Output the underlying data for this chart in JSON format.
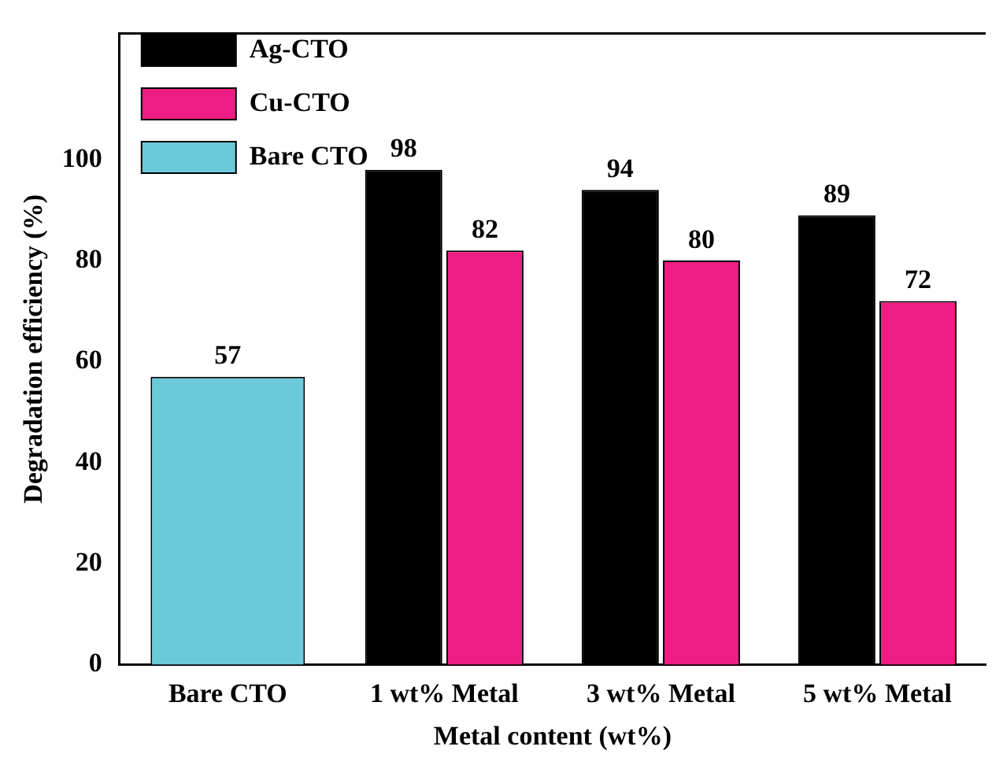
{
  "chart_data": {
    "type": "bar",
    "xlabel": "Metal content (wt%)",
    "ylabel": "Degradation efficiency (%)",
    "categories": [
      "Bare CTO",
      "1 wt% Metal",
      "3 wt% Metal",
      "5 wt% Metal"
    ],
    "series": [
      {
        "name": "Ag-CTO",
        "color": "#000000",
        "values": [
          null,
          98,
          94,
          89
        ]
      },
      {
        "name": "Cu-CTO",
        "color": "#ec1e84",
        "values": [
          null,
          82,
          80,
          72
        ]
      },
      {
        "name": "Bare CTO",
        "color": "#6cc9d9",
        "values": [
          57,
          null,
          null,
          null
        ]
      }
    ],
    "ylim": [
      0,
      125
    ],
    "yticks": [
      0,
      20,
      40,
      60,
      80,
      100
    ],
    "grid": false,
    "legend": "top left",
    "data_labels": true
  }
}
